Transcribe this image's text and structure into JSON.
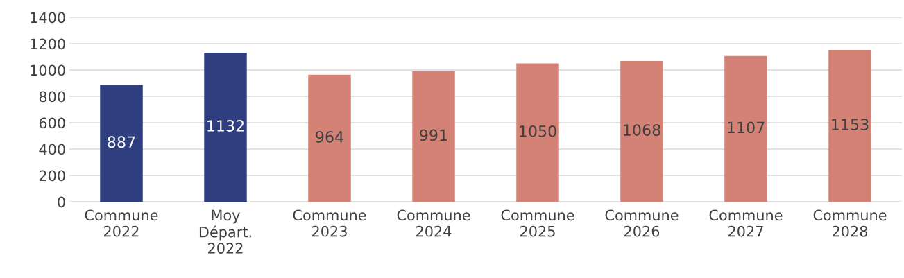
{
  "chart_data": {
    "type": "bar",
    "categories": [
      "Commune\n2022",
      "Moy\nDépart.\n2022",
      "Commune\n2023",
      "Commune\n2024",
      "Commune\n2025",
      "Commune\n2026",
      "Commune\n2027",
      "Commune\n2028"
    ],
    "values": [
      887,
      1132,
      964,
      991,
      1050,
      1068,
      1107,
      1153
    ],
    "colors": [
      "#2e3e7e",
      "#2e3e7e",
      "#d38275",
      "#d38275",
      "#d38275",
      "#d38275",
      "#d38275",
      "#d38275"
    ],
    "ylim": [
      0,
      1400
    ],
    "yticks": [
      0,
      200,
      400,
      600,
      800,
      1000,
      1200,
      1400
    ],
    "grid": "y",
    "data_labels": true,
    "legend": false
  }
}
